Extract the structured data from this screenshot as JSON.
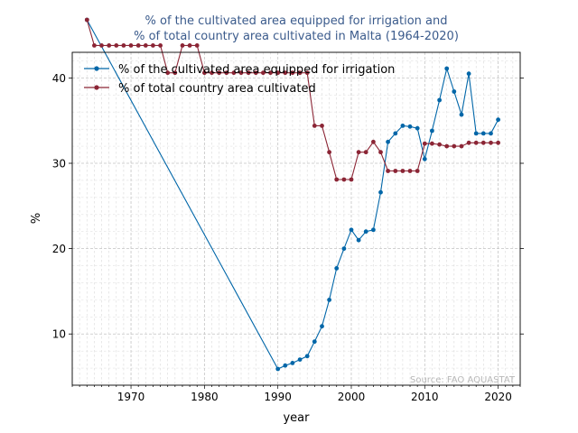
{
  "chart_data": {
    "type": "line",
    "title_line1": "% of the cultivated area equipped for irrigation and",
    "title_line2": "% of total country area cultivated in Malta (1964-2020)",
    "xlabel": "year",
    "ylabel": "%",
    "xlim": [
      1962,
      2023
    ],
    "ylim": [
      4,
      43
    ],
    "xticks": [
      1970,
      1980,
      1990,
      2000,
      2010,
      2020
    ],
    "yticks": [
      10,
      20,
      30,
      40
    ],
    "grid": true,
    "legend_position": "upper-left",
    "source": "Source: FAO AQUASTAT",
    "series": [
      {
        "name": "% of the cultivated area equipped for irrigation",
        "color": "#0066a8",
        "x": [
          1964,
          1990,
          1991,
          1992,
          1993,
          1994,
          1995,
          1996,
          1997,
          1998,
          1999,
          2000,
          2001,
          2002,
          2003,
          2004,
          2005,
          2006,
          2007,
          2008,
          2009,
          2010,
          2011,
          2012,
          2013,
          2014,
          2015,
          2016,
          2017,
          2018,
          2019,
          2020
        ],
        "y": [
          46.8,
          5.9,
          6.3,
          6.6,
          7.0,
          7.4,
          9.1,
          10.9,
          14.0,
          17.7,
          20.0,
          22.2,
          21.0,
          22.0,
          22.2,
          26.6,
          32.5,
          33.5,
          34.4,
          34.3,
          34.1,
          30.5,
          33.8,
          37.4,
          41.1,
          38.4,
          35.7,
          40.5,
          33.5,
          33.5,
          33.5,
          35.1
        ]
      },
      {
        "name": "% of total country area cultivated",
        "color": "#8b2535",
        "x": [
          1964,
          1965,
          1966,
          1967,
          1968,
          1969,
          1970,
          1971,
          1972,
          1973,
          1974,
          1975,
          1976,
          1977,
          1978,
          1979,
          1980,
          1981,
          1982,
          1983,
          1984,
          1985,
          1986,
          1987,
          1988,
          1989,
          1990,
          1991,
          1992,
          1993,
          1994,
          1995,
          1996,
          1997,
          1998,
          1999,
          2000,
          2001,
          2002,
          2003,
          2004,
          2005,
          2006,
          2007,
          2008,
          2009,
          2010,
          2011,
          2012,
          2013,
          2014,
          2015,
          2016,
          2017,
          2018,
          2019,
          2020
        ],
        "y": [
          46.8,
          43.8,
          43.8,
          43.8,
          43.8,
          43.8,
          43.8,
          43.8,
          43.8,
          43.8,
          43.8,
          40.6,
          40.6,
          43.8,
          43.8,
          43.8,
          40.6,
          40.6,
          40.6,
          40.6,
          40.6,
          40.6,
          40.6,
          40.6,
          40.6,
          40.6,
          40.6,
          40.6,
          40.6,
          40.6,
          40.6,
          34.4,
          34.4,
          31.3,
          28.1,
          28.1,
          28.1,
          31.3,
          31.3,
          32.5,
          31.3,
          29.1,
          29.1,
          29.1,
          29.1,
          29.1,
          32.3,
          32.3,
          32.2,
          32.0,
          32.0,
          32.0,
          32.4,
          32.4,
          32.4,
          32.4,
          32.4
        ]
      }
    ]
  }
}
